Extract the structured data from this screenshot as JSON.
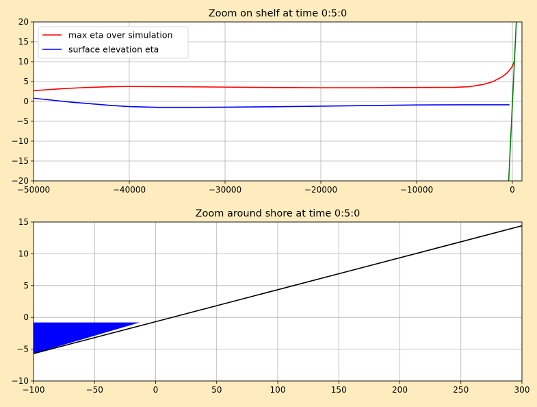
{
  "chart_data": [
    {
      "type": "line",
      "title": "Zoom on shelf at time 0:5:0",
      "xlim": [
        -50000,
        1000
      ],
      "ylim": [
        -20,
        20
      ],
      "xticks": [
        -50000,
        -40000,
        -30000,
        -20000,
        -10000,
        0
      ],
      "xtick_labels": [
        "−50000",
        "−40000",
        "−30000",
        "−20000",
        "−10000",
        "0"
      ],
      "yticks": [
        -20,
        -15,
        -10,
        -5,
        0,
        5,
        10,
        15,
        20
      ],
      "ytick_labels": [
        "−20",
        "−15",
        "−10",
        "−5",
        "0",
        "5",
        "10",
        "15",
        "20"
      ],
      "grid": true,
      "legend_placement": "top-left",
      "series": [
        {
          "name": "max eta over simulation",
          "color": "#ff0000",
          "x": [
            -50000,
            -47000,
            -45000,
            -42000,
            -40000,
            -35000,
            -30000,
            -25000,
            -20000,
            -15000,
            -10000,
            -6000,
            -4500,
            -3000,
            -2000,
            -1000,
            -500,
            0,
            200
          ],
          "y": [
            2.7,
            3.2,
            3.45,
            3.7,
            3.75,
            3.7,
            3.6,
            3.5,
            3.45,
            3.45,
            3.5,
            3.55,
            3.7,
            4.3,
            5.0,
            6.3,
            7.3,
            8.8,
            10.2
          ]
        },
        {
          "name": "surface elevation eta",
          "color": "#0000ff",
          "x": [
            -50000,
            -48000,
            -46000,
            -44000,
            -42000,
            -40000,
            -37000,
            -33000,
            -30000,
            -25000,
            -20000,
            -15000,
            -10000,
            -5000,
            -300
          ],
          "y": [
            0.8,
            0.3,
            -0.2,
            -0.6,
            -1.0,
            -1.3,
            -1.5,
            -1.5,
            -1.45,
            -1.35,
            -1.2,
            -1.05,
            -0.9,
            -0.85,
            -0.85
          ]
        },
        {
          "name": "bathymetry",
          "color": "#008000",
          "legend": false,
          "x": [
            -385,
            411
          ],
          "y": [
            -20,
            20
          ]
        }
      ]
    },
    {
      "type": "line",
      "title": "Zoom around shore at time 0:5:0",
      "xlim": [
        -100,
        300
      ],
      "ylim": [
        -10,
        15
      ],
      "xticks": [
        -100,
        -50,
        0,
        50,
        100,
        150,
        200,
        250,
        300
      ],
      "xtick_labels": [
        "−100",
        "−50",
        "0",
        "50",
        "100",
        "150",
        "200",
        "250",
        "300"
      ],
      "yticks": [
        -10,
        -5,
        0,
        5,
        10,
        15
      ],
      "ytick_labels": [
        "−10",
        "−5",
        "0",
        "5",
        "10",
        "15"
      ],
      "grid": true,
      "series": [
        {
          "name": "bathymetry",
          "color": "#000000",
          "x": [
            -100,
            300
          ],
          "y": [
            -5.7,
            14.4
          ]
        }
      ],
      "fills": [
        {
          "name": "water",
          "color": "#0000ff",
          "x": [
            -100,
            -13,
            -100
          ],
          "y": [
            -0.8,
            -0.8,
            -5.7
          ]
        }
      ]
    }
  ]
}
